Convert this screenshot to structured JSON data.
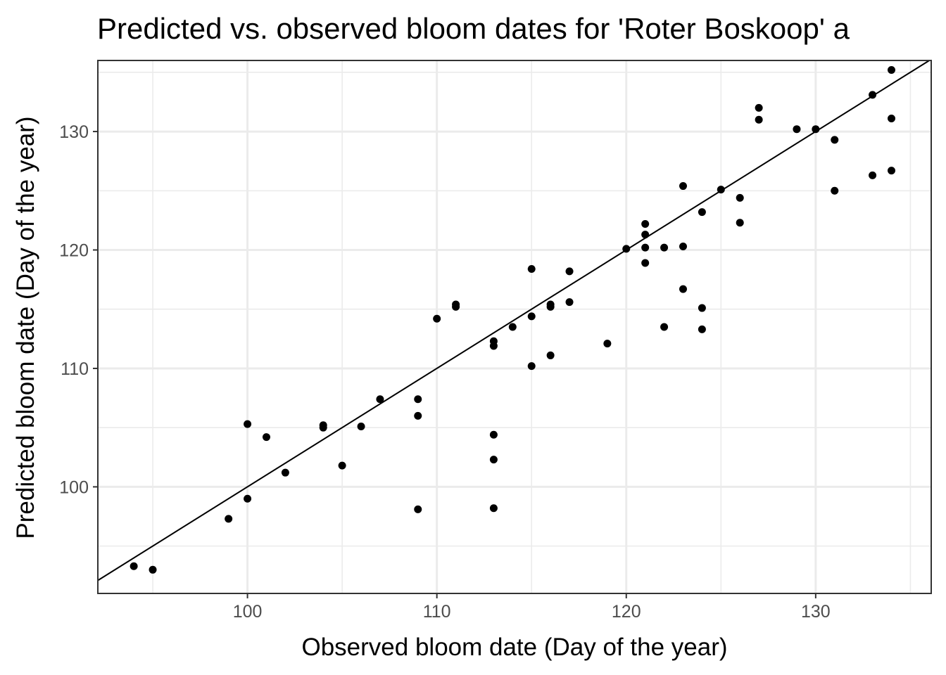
{
  "chart_data": {
    "type": "scatter",
    "title": "Predicted vs. observed bloom dates for 'Roter Boskoop' a",
    "xlabel": "Observed bloom date (Day of the year)",
    "ylabel": "Predicted bloom date (Day of the year)",
    "xlim": [
      92.1,
      136.1
    ],
    "ylim": [
      91.0,
      136.0
    ],
    "x_ticks": [
      100,
      110,
      120,
      130
    ],
    "y_ticks": [
      100,
      110,
      120,
      130
    ],
    "grid": true,
    "reference_line": {
      "type": "identity",
      "slope": 1,
      "intercept": 0
    },
    "points": [
      {
        "x": 94,
        "y": 93.3
      },
      {
        "x": 95,
        "y": 93.0
      },
      {
        "x": 99,
        "y": 97.3
      },
      {
        "x": 100,
        "y": 105.3
      },
      {
        "x": 100,
        "y": 99.0
      },
      {
        "x": 101,
        "y": 104.2
      },
      {
        "x": 102,
        "y": 101.2
      },
      {
        "x": 104,
        "y": 105.2
      },
      {
        "x": 104,
        "y": 105.0
      },
      {
        "x": 105,
        "y": 101.8
      },
      {
        "x": 106,
        "y": 105.1
      },
      {
        "x": 107,
        "y": 107.4
      },
      {
        "x": 109,
        "y": 107.4
      },
      {
        "x": 109,
        "y": 106.0
      },
      {
        "x": 109,
        "y": 98.1
      },
      {
        "x": 110,
        "y": 114.2
      },
      {
        "x": 111,
        "y": 115.4
      },
      {
        "x": 111,
        "y": 115.2
      },
      {
        "x": 113,
        "y": 112.3
      },
      {
        "x": 113,
        "y": 111.9
      },
      {
        "x": 113,
        "y": 104.4
      },
      {
        "x": 113,
        "y": 102.3
      },
      {
        "x": 113,
        "y": 98.2
      },
      {
        "x": 114,
        "y": 113.5
      },
      {
        "x": 115,
        "y": 118.4
      },
      {
        "x": 115,
        "y": 114.4
      },
      {
        "x": 115,
        "y": 110.2
      },
      {
        "x": 116,
        "y": 115.4
      },
      {
        "x": 116,
        "y": 115.2
      },
      {
        "x": 116,
        "y": 111.1
      },
      {
        "x": 117,
        "y": 118.2
      },
      {
        "x": 117,
        "y": 115.6
      },
      {
        "x": 119,
        "y": 112.1
      },
      {
        "x": 120,
        "y": 120.1
      },
      {
        "x": 121,
        "y": 122.2
      },
      {
        "x": 121,
        "y": 121.3
      },
      {
        "x": 121,
        "y": 120.2
      },
      {
        "x": 121,
        "y": 118.9
      },
      {
        "x": 122,
        "y": 120.2
      },
      {
        "x": 122,
        "y": 113.5
      },
      {
        "x": 123,
        "y": 125.4
      },
      {
        "x": 123,
        "y": 120.3
      },
      {
        "x": 123,
        "y": 116.7
      },
      {
        "x": 124,
        "y": 123.2
      },
      {
        "x": 124,
        "y": 115.1
      },
      {
        "x": 124,
        "y": 113.3
      },
      {
        "x": 125,
        "y": 125.1
      },
      {
        "x": 126,
        "y": 124.4
      },
      {
        "x": 126,
        "y": 122.3
      },
      {
        "x": 127,
        "y": 132.0
      },
      {
        "x": 127,
        "y": 131.0
      },
      {
        "x": 129,
        "y": 130.2
      },
      {
        "x": 130,
        "y": 130.2
      },
      {
        "x": 131,
        "y": 129.3
      },
      {
        "x": 131,
        "y": 125.0
      },
      {
        "x": 133,
        "y": 133.1
      },
      {
        "x": 133,
        "y": 126.3
      },
      {
        "x": 134,
        "y": 135.2
      },
      {
        "x": 134,
        "y": 131.1
      },
      {
        "x": 134,
        "y": 126.7
      }
    ]
  }
}
